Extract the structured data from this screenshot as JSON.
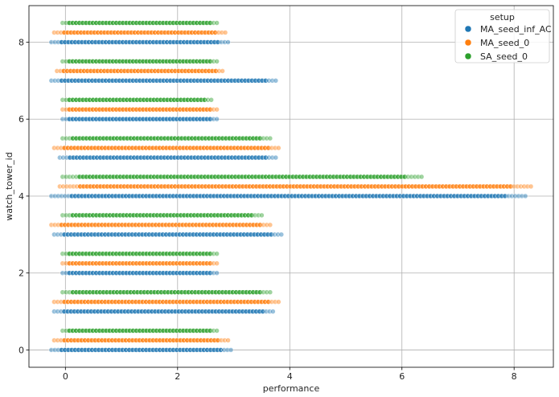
{
  "chart_data": {
    "type": "scatter",
    "title": "",
    "xlabel": "performance",
    "ylabel": "watch_tower_id",
    "xlim": [
      -0.65,
      8.7
    ],
    "ylim": [
      -0.45,
      8.95
    ],
    "xticks": [
      "0",
      "2",
      "4",
      "6",
      "8"
    ],
    "yticks": [
      "0",
      "2",
      "4",
      "6",
      "8"
    ],
    "grid": true,
    "legend": {
      "title": "setup",
      "placement": "top-right"
    },
    "series": [
      {
        "name": "MA_seed_inf_AC",
        "color": "#1f77b4",
        "y_offset": 0.0,
        "ranges": [
          {
            "id": 0,
            "x_min": -0.25,
            "x_max": 2.95
          },
          {
            "id": 1,
            "x_min": -0.2,
            "x_max": 3.7
          },
          {
            "id": 2,
            "x_min": -0.05,
            "x_max": 2.7
          },
          {
            "id": 3,
            "x_min": -0.2,
            "x_max": 3.85
          },
          {
            "id": 4,
            "x_min": -0.25,
            "x_max": 8.2
          },
          {
            "id": 5,
            "x_min": -0.1,
            "x_max": 3.75
          },
          {
            "id": 6,
            "x_min": -0.05,
            "x_max": 2.7
          },
          {
            "id": 7,
            "x_min": -0.25,
            "x_max": 3.75
          },
          {
            "id": 8,
            "x_min": -0.25,
            "x_max": 2.9
          }
        ]
      },
      {
        "name": "MA_seed_0",
        "color": "#ff7f0e",
        "y_offset": 0.25,
        "ranges": [
          {
            "id": 0,
            "x_min": -0.2,
            "x_max": 2.9
          },
          {
            "id": 1,
            "x_min": -0.2,
            "x_max": 3.8
          },
          {
            "id": 2,
            "x_min": -0.05,
            "x_max": 2.7
          },
          {
            "id": 3,
            "x_min": -0.25,
            "x_max": 3.65
          },
          {
            "id": 4,
            "x_min": -0.1,
            "x_max": 8.3
          },
          {
            "id": 5,
            "x_min": -0.2,
            "x_max": 3.8
          },
          {
            "id": 6,
            "x_min": -0.05,
            "x_max": 2.7
          },
          {
            "id": 7,
            "x_min": -0.15,
            "x_max": 2.8
          },
          {
            "id": 8,
            "x_min": -0.2,
            "x_max": 2.85
          }
        ]
      },
      {
        "name": "SA_seed_0",
        "color": "#2ca02c",
        "y_offset": 0.5,
        "ranges": [
          {
            "id": 0,
            "x_min": -0.05,
            "x_max": 2.7
          },
          {
            "id": 1,
            "x_min": -0.05,
            "x_max": 3.65
          },
          {
            "id": 2,
            "x_min": -0.05,
            "x_max": 2.7
          },
          {
            "id": 3,
            "x_min": -0.05,
            "x_max": 3.5
          },
          {
            "id": 4,
            "x_min": -0.05,
            "x_max": 6.35
          },
          {
            "id": 5,
            "x_min": -0.05,
            "x_max": 3.65
          },
          {
            "id": 6,
            "x_min": -0.05,
            "x_max": 2.6
          },
          {
            "id": 7,
            "x_min": -0.05,
            "x_max": 2.7
          },
          {
            "id": 8,
            "x_min": -0.05,
            "x_max": 2.7
          }
        ]
      }
    ]
  }
}
